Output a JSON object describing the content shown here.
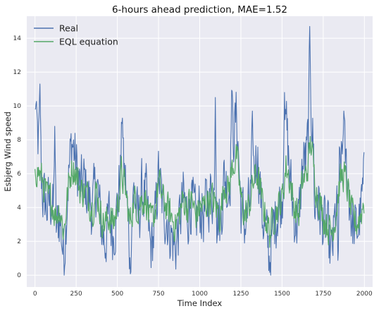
{
  "chart_data": {
    "type": "line",
    "title": "6-hours ahead prediction, MAE=1.52",
    "xlabel": "Time Index",
    "ylabel": "Esbjerg Wind speed",
    "xlim": [
      -50,
      2050
    ],
    "ylim": [
      -0.7,
      15.3
    ],
    "xticks": [
      0,
      250,
      500,
      750,
      1000,
      1250,
      1500,
      1750,
      2000
    ],
    "yticks": [
      0,
      2,
      4,
      6,
      8,
      10,
      12,
      14
    ],
    "grid": true,
    "legend_position": "top-left",
    "x": [
      0,
      25,
      50,
      75,
      100,
      125,
      150,
      175,
      200,
      225,
      250,
      275,
      300,
      325,
      350,
      375,
      400,
      425,
      450,
      475,
      500,
      525,
      550,
      575,
      600,
      625,
      650,
      675,
      700,
      725,
      750,
      775,
      800,
      825,
      850,
      875,
      900,
      925,
      950,
      975,
      1000,
      1025,
      1050,
      1075,
      1100,
      1125,
      1150,
      1175,
      1200,
      1225,
      1250,
      1275,
      1300,
      1325,
      1350,
      1375,
      1400,
      1425,
      1450,
      1475,
      1500,
      1525,
      1550,
      1575,
      1600,
      1625,
      1650,
      1675,
      1700,
      1725,
      1750,
      1775,
      1800,
      1825,
      1850,
      1875,
      1900,
      1925,
      1950,
      1975,
      2000
    ],
    "series": [
      {
        "name": "Real",
        "color": "#4c72b0",
        "values": [
          9.0,
          7.5,
          4.5,
          4.0,
          4.5,
          2.5,
          3.5,
          1.0,
          5.5,
          8.0,
          6.5,
          5.0,
          5.5,
          4.5,
          4.0,
          5.5,
          3.0,
          2.0,
          3.5,
          2.5,
          4.0,
          7.0,
          5.5,
          1.5,
          5.0,
          3.0,
          5.0,
          4.5,
          1.5,
          2.5,
          6.0,
          4.0,
          3.5,
          2.5,
          1.5,
          3.0,
          4.5,
          3.5,
          4.5,
          3.0,
          4.0,
          3.5,
          4.5,
          5.0,
          4.0,
          3.0,
          6.0,
          5.0,
          8.0,
          9.5,
          4.0,
          3.0,
          4.0,
          6.0,
          7.5,
          4.0,
          2.5,
          1.0,
          3.0,
          4.0,
          4.5,
          9.0,
          5.5,
          3.5,
          3.0,
          6.5,
          7.0,
          10.5,
          5.5,
          4.0,
          3.0,
          2.5,
          1.0,
          3.5,
          6.0,
          7.5,
          5.5,
          3.0,
          2.5,
          3.5,
          5.5
        ]
      },
      {
        "name": "EQL equation",
        "color": "#55a868",
        "values": [
          6.5,
          6.0,
          5.5,
          4.5,
          4.5,
          3.5,
          4.0,
          2.5,
          5.0,
          6.5,
          6.0,
          5.0,
          5.0,
          4.5,
          4.0,
          5.0,
          3.5,
          3.0,
          3.5,
          3.0,
          4.0,
          6.0,
          5.0,
          3.0,
          4.5,
          4.0,
          4.5,
          4.5,
          3.0,
          3.5,
          5.5,
          4.5,
          4.0,
          3.5,
          3.0,
          3.5,
          4.5,
          4.0,
          4.5,
          3.5,
          4.0,
          4.0,
          4.5,
          4.5,
          4.0,
          3.5,
          5.5,
          5.0,
          6.5,
          7.0,
          4.5,
          3.5,
          4.0,
          5.5,
          6.0,
          4.5,
          3.5,
          2.5,
          3.5,
          4.0,
          4.5,
          6.5,
          5.5,
          4.0,
          3.5,
          5.5,
          6.0,
          8.0,
          5.5,
          4.5,
          3.5,
          3.0,
          2.5,
          3.5,
          5.5,
          6.0,
          5.0,
          3.5,
          3.0,
          3.5,
          4.5
        ]
      }
    ],
    "annotations": {
      "real_spikes": [
        {
          "x": 5,
          "y": 10.3
        },
        {
          "x": 30,
          "y": 11.3
        },
        {
          "x": 120,
          "y": 8.8
        },
        {
          "x": 530,
          "y": 9.8
        },
        {
          "x": 580,
          "y": 0.0
        },
        {
          "x": 1095,
          "y": 10.5
        },
        {
          "x": 1195,
          "y": 11.5
        },
        {
          "x": 1320,
          "y": 9.7
        },
        {
          "x": 1515,
          "y": 10.8
        },
        {
          "x": 1668,
          "y": 14.7
        },
        {
          "x": 1700,
          "y": 3.0
        },
        {
          "x": 1840,
          "y": 0.3
        },
        {
          "x": 1875,
          "y": 9.7
        }
      ]
    }
  }
}
